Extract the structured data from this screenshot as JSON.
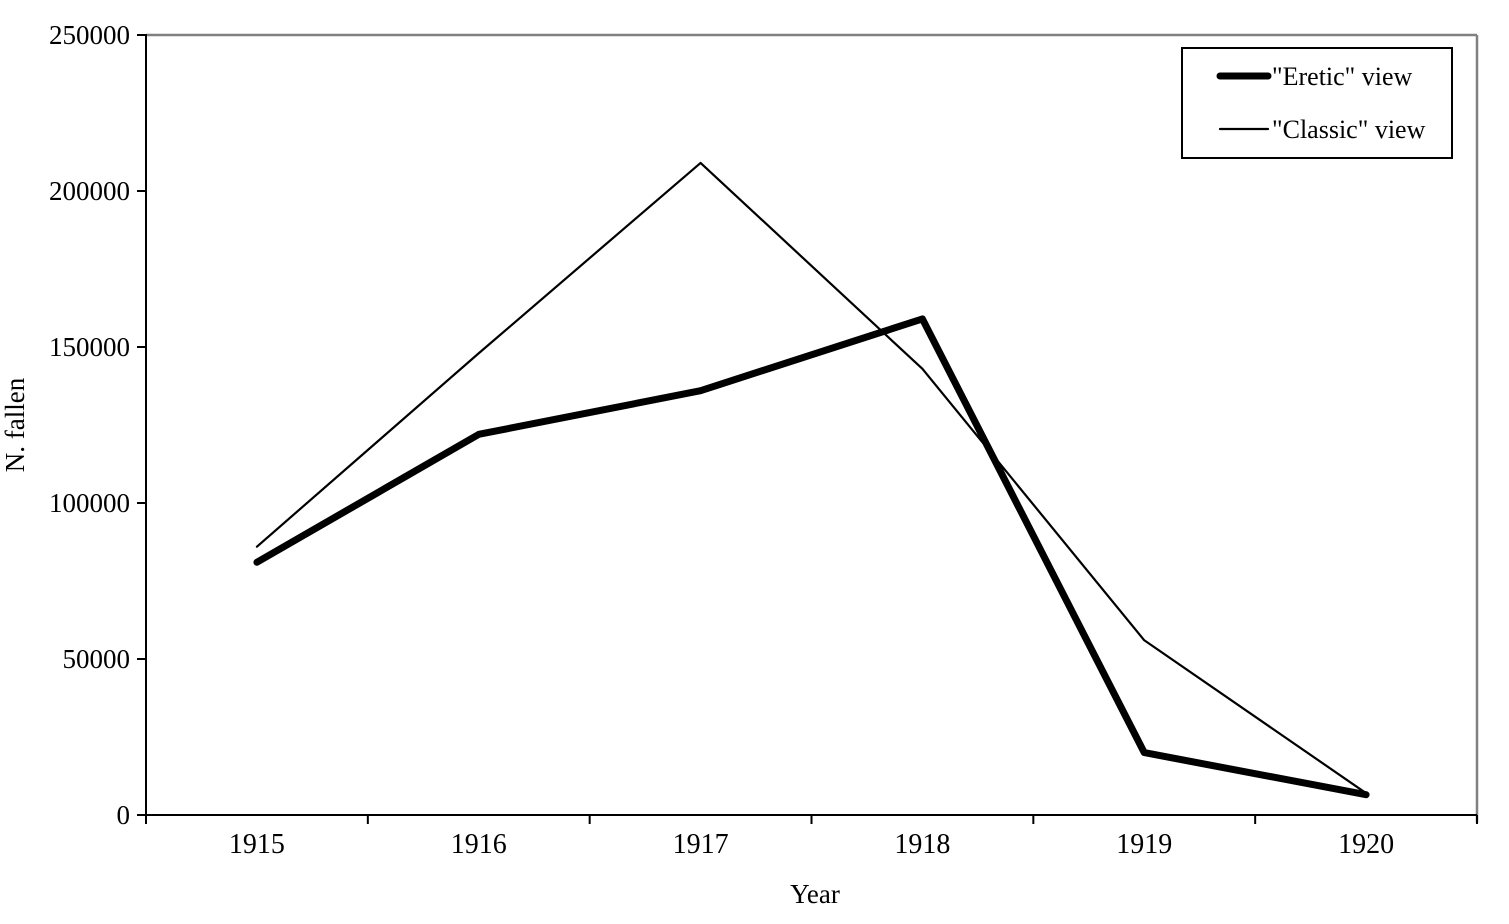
{
  "chart_data": {
    "type": "line",
    "title": "",
    "xlabel": "Year",
    "ylabel": "N. fallen",
    "categories": [
      "1915",
      "1916",
      "1917",
      "1918",
      "1919",
      "1920"
    ],
    "series": [
      {
        "name": "\"Eretic\" view",
        "style": "thick",
        "values": [
          81000,
          122000,
          136000,
          159000,
          20000,
          6500
        ]
      },
      {
        "name": "\"Classic\" view",
        "style": "thin",
        "values": [
          86000,
          148000,
          209000,
          143000,
          56000,
          7000
        ]
      }
    ],
    "ylim": [
      0,
      250000
    ],
    "ytick_step": 50000,
    "ytick_labels": [
      "0",
      "50000",
      "100000",
      "150000",
      "200000",
      "250000"
    ],
    "grid": false,
    "legend_position": "top-right",
    "colors": {
      "line": "#000000",
      "frame": "#808080",
      "axis": "#000000",
      "background": "#ffffff",
      "legend_border": "#000000"
    }
  }
}
